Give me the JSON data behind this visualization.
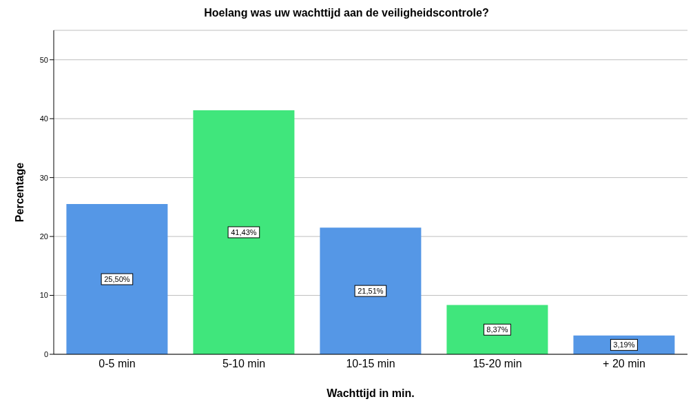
{
  "chart_data": {
    "type": "bar",
    "title": "Hoelang was uw wachttijd aan de veiligheidscontrole?",
    "xlabel": "Wachttijd in min.",
    "ylabel": "Percentage",
    "categories": [
      "0-5 min",
      "5-10 min",
      "10-15 min",
      "15-20 min",
      "+ 20 min"
    ],
    "values": [
      25.5,
      41.43,
      21.51,
      8.37,
      3.19
    ],
    "colors": [
      "#5597e6",
      "#40e67c",
      "#5597e6",
      "#40e67c",
      "#5597e6"
    ],
    "value_labels": [
      "25,50%",
      "41,43%",
      "21,51%",
      "8,37%",
      "3,19%"
    ],
    "ylim": [
      0,
      55
    ],
    "yticks": [
      0,
      10,
      20,
      30,
      40,
      50
    ],
    "grid": "y"
  }
}
